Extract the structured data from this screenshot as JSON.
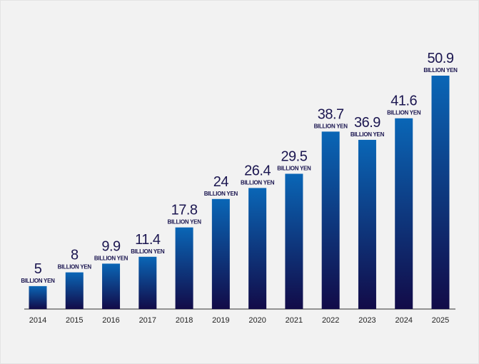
{
  "chart_data": {
    "type": "bar",
    "categories": [
      "2014",
      "2015",
      "2016",
      "2017",
      "2018",
      "2019",
      "2020",
      "2021",
      "2022",
      "2023",
      "2024",
      "2025"
    ],
    "values": [
      5,
      8,
      9.9,
      11.4,
      17.8,
      24,
      26.4,
      29.5,
      38.7,
      36.9,
      41.6,
      50.9
    ],
    "value_labels": [
      "5",
      "8",
      "9.9",
      "11.4",
      "17.8",
      "24",
      "26.4",
      "29.5",
      "38.7",
      "36.9",
      "41.6",
      "50.9"
    ],
    "unit_label": "BILLION YEN",
    "title": "",
    "xlabel": "",
    "ylabel": "",
    "ylim": [
      0,
      50.9
    ],
    "grid": false,
    "colors": {
      "bar_top": "#0a66b6",
      "bar_bottom": "#120b48",
      "label": "#1b1650",
      "background": "#f2f2f2"
    }
  }
}
